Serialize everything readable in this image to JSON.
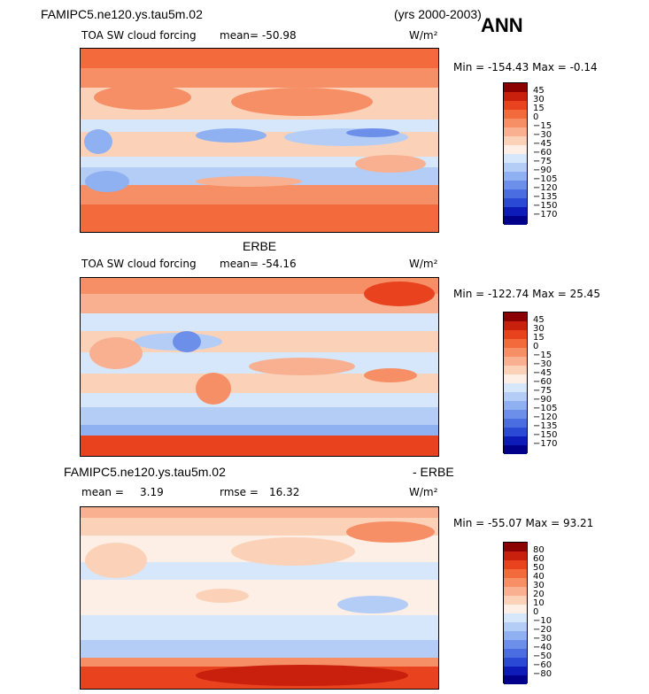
{
  "header": {
    "case_name": "FAMIPC5.ne120.ys.tau5m.02",
    "years": "(yrs 2000-2003)",
    "season": "ANN"
  },
  "panels": [
    {
      "id": "model",
      "title": "",
      "variable": "TOA SW cloud forcing",
      "mean_text": "mean= -50.98",
      "units": "W/m²",
      "minmax_text": "Min = -154.43 Max =  -0.14",
      "levels": [
        "45",
        "30",
        "15",
        "0",
        "−15",
        "−30",
        "−45",
        "−60",
        "−75",
        "−90",
        "−105",
        "−120",
        "−135",
        "−150",
        "−170"
      ],
      "colors": [
        "#8b0000",
        "#c8200c",
        "#e8421e",
        "#f36a3c",
        "#f68f66",
        "#f8b090",
        "#fbd2b8",
        "#fdeee6",
        "#d6e6fb",
        "#b4cdf7",
        "#8fb0f1",
        "#6c90ea",
        "#4a6de2",
        "#2a49d5",
        "#0d1cb8",
        "#00008a"
      ],
      "field_colors": {
        "polar": "#f36a3c",
        "subtrop": "#f68f66",
        "midlat": "#f8b090",
        "trop": "#fbd2b8",
        "bluebelt": "#b4cdf7",
        "deepblue": "#6c90ea",
        "deeporange": "#e8421e"
      }
    },
    {
      "id": "obs",
      "title": "ERBE",
      "variable": "TOA SW cloud forcing",
      "mean_text": "mean= -54.16",
      "units": "W/m²",
      "minmax_text": "Min = -122.74 Max =  25.45",
      "levels": [
        "45",
        "30",
        "15",
        "0",
        "−15",
        "−30",
        "−45",
        "−60",
        "−75",
        "−90",
        "−105",
        "−120",
        "−135",
        "−150",
        "−170"
      ],
      "colors": [
        "#8b0000",
        "#c8200c",
        "#e8421e",
        "#f36a3c",
        "#f68f66",
        "#f8b090",
        "#fbd2b8",
        "#fdeee6",
        "#d6e6fb",
        "#b4cdf7",
        "#8fb0f1",
        "#6c90ea",
        "#4a6de2",
        "#2a49d5",
        "#0d1cb8",
        "#00008a"
      ]
    },
    {
      "id": "diff",
      "title_left": "FAMIPC5.ne120.ys.tau5m.02",
      "title_right": "- ERBE",
      "mean_label": "mean =",
      "mean_value": "3.19",
      "rmse_label": "rmse =",
      "rmse_value": "16.32",
      "units": "W/m²",
      "minmax_text": "Min = -55.07 Max =  93.21",
      "levels": [
        "80",
        "60",
        "50",
        "40",
        "30",
        "20",
        "10",
        "0",
        "−10",
        "−20",
        "−30",
        "−40",
        "−50",
        "−60",
        "−80"
      ],
      "colors": [
        "#8b0000",
        "#c8200c",
        "#e8421e",
        "#f36a3c",
        "#f68f66",
        "#f8b090",
        "#fbd2b8",
        "#fdeee6",
        "#d6e6fb",
        "#b4cdf7",
        "#8fb0f1",
        "#6c90ea",
        "#4a6de2",
        "#2a49d5",
        "#0d1cb8",
        "#00008a"
      ]
    }
  ],
  "chart_data": [
    {
      "type": "heatmap",
      "title": "TOA SW cloud forcing",
      "case": "FAMIPC5.ne120.ys.tau5m.02",
      "period": "yrs 2000-2003",
      "season": "ANN",
      "units": "W/m2",
      "mean": -50.98,
      "min": -154.43,
      "max": -0.14,
      "contour_levels": [
        45,
        30,
        15,
        0,
        -15,
        -30,
        -45,
        -60,
        -75,
        -90,
        -105,
        -120,
        -135,
        -150,
        -170
      ]
    },
    {
      "type": "heatmap",
      "title": "ERBE TOA SW cloud forcing",
      "units": "W/m2",
      "mean": -54.16,
      "min": -122.74,
      "max": 25.45,
      "contour_levels": [
        45,
        30,
        15,
        0,
        -15,
        -30,
        -45,
        -60,
        -75,
        -90,
        -105,
        -120,
        -135,
        -150,
        -170
      ]
    },
    {
      "type": "heatmap",
      "title": "FAMIPC5.ne120.ys.tau5m.02 - ERBE",
      "units": "W/m2",
      "mean": 3.19,
      "rmse": 16.32,
      "min": -55.07,
      "max": 93.21,
      "contour_levels": [
        80,
        60,
        50,
        40,
        30,
        20,
        10,
        0,
        -10,
        -20,
        -30,
        -40,
        -50,
        -60,
        -80
      ]
    }
  ]
}
